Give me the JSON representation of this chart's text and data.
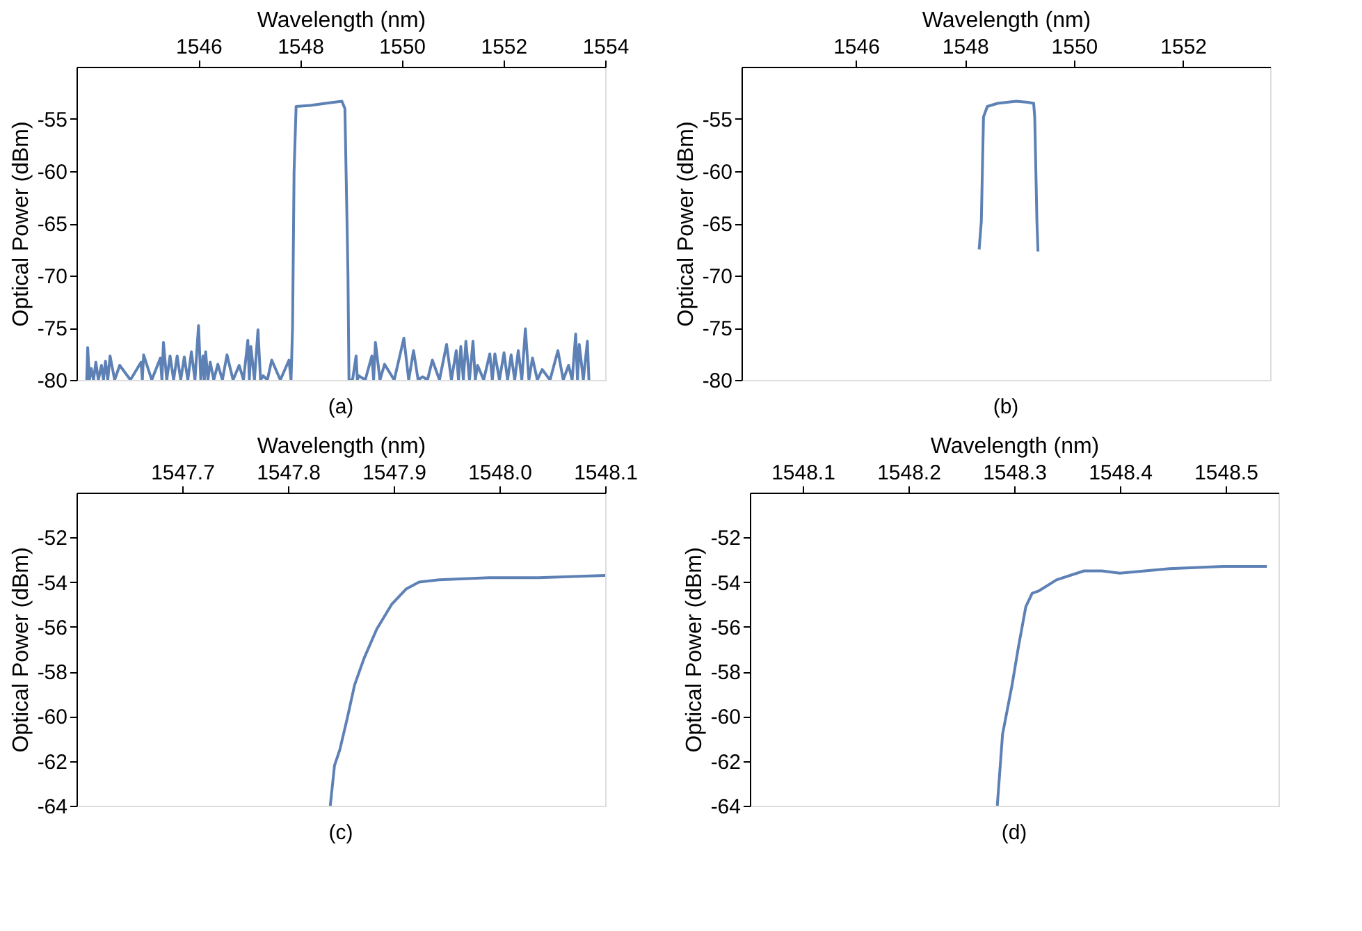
{
  "chart_data": [
    {
      "type": "line",
      "xlabel": "Wavelength (nm)",
      "ylabel": "Optical Power (dBm)",
      "annotations": [
        "(a)"
      ],
      "xlim": [
        1543.6,
        1554
      ],
      "ylim": [
        -80,
        -50
      ],
      "xticks": [
        1546,
        1548,
        1550,
        1552,
        1554
      ],
      "yticks": [
        -55,
        -60,
        -65,
        -70,
        -75,
        -80
      ],
      "grid": false,
      "series": [
        {
          "color": "#5e81b5",
          "x": [
            1543.8,
            1543.82,
            1543.855,
            1543.89,
            1543.935,
            1543.98,
            1544.03,
            1544.09,
            1544.13,
            1544.17,
            1544.215,
            1544.26,
            1544.35,
            1544.45,
            1544.66,
            1544.87,
            1544.895,
            1544.92,
            1545.08,
            1545.25,
            1545.28,
            1545.31,
            1545.375,
            1545.44,
            1545.51,
            1545.58,
            1545.65,
            1545.72,
            1545.79,
            1545.86,
            1545.93,
            1546.0,
            1546.045,
            1546.09,
            1546.115,
            1546.14,
            1546.185,
            1546.23,
            1546.3,
            1546.38,
            1546.47,
            1546.56,
            1546.68,
            1546.8,
            1546.885,
            1546.97,
            1547.0,
            1547.03,
            1547.1,
            1547.17,
            1547.22,
            1547.27,
            1547.355,
            1547.44,
            1547.61,
            1547.78,
            1547.82,
            1547.85,
            1547.88,
            1547.92,
            1548.2,
            1548.5,
            1548.82,
            1548.88,
            1548.92,
            1548.94,
            1548.96,
            1549.03,
            1549.1,
            1549.125,
            1549.15,
            1549.28,
            1549.41,
            1549.445,
            1549.48,
            1549.57,
            1549.66,
            1549.85,
            1550.04,
            1550.135,
            1550.23,
            1550.32,
            1550.41,
            1550.505,
            1550.6,
            1550.74,
            1550.88,
            1550.975,
            1551.07,
            1551.115,
            1551.16,
            1551.21,
            1551.26,
            1551.33,
            1551.4,
            1551.445,
            1551.49,
            1551.61,
            1551.73,
            1551.78,
            1551.83,
            1551.92,
            1552.01,
            1552.08,
            1552.15,
            1552.22,
            1552.29,
            1552.36,
            1552.43,
            1552.5,
            1552.57,
            1552.665,
            1552.76,
            1552.915,
            1553.07,
            1553.175,
            1553.28,
            1553.35,
            1553.42,
            1553.455,
            1553.49,
            1553.57,
            1553.65,
            1553.68
          ],
          "values": [
            -80,
            -76.9,
            -80,
            -78.9,
            -80,
            -78.3,
            -80,
            -78.6,
            -80,
            -78.2,
            -80,
            -77.7,
            -80,
            -78.6,
            -80,
            -78.3,
            -80,
            -77.6,
            -80,
            -77.9,
            -80,
            -76.4,
            -80,
            -77.7,
            -80,
            -77.7,
            -80,
            -77.8,
            -80,
            -77.3,
            -80,
            -74.8,
            -80,
            -77.7,
            -80,
            -77.3,
            -80,
            -78.3,
            -80,
            -78.5,
            -80,
            -77.6,
            -80,
            -78.6,
            -80,
            -76.2,
            -80,
            -76.8,
            -80,
            -75.2,
            -80,
            -79.6,
            -80,
            -78.1,
            -80,
            -78.1,
            -80,
            -75,
            -60,
            -53.8,
            -53.7,
            -53.5,
            -53.3,
            -54,
            -64.5,
            -70,
            -80,
            -80,
            -77.7,
            -80,
            -79.6,
            -80,
            -77.7,
            -80,
            -76.4,
            -80,
            -78.5,
            -80,
            -76.0,
            -80,
            -77.2,
            -80,
            -79.7,
            -80,
            -78.1,
            -80,
            -76.6,
            -80,
            -77.2,
            -80,
            -76.8,
            -80,
            -76.3,
            -80,
            -76.3,
            -80,
            -78.6,
            -80,
            -77.5,
            -80,
            -77.5,
            -80,
            -77.4,
            -80,
            -77.6,
            -80,
            -77.2,
            -80,
            -75.1,
            -80,
            -77.9,
            -80,
            -79.0,
            -80,
            -77.2,
            -80,
            -78.6,
            -80,
            -75.6,
            -80,
            -76.6,
            -80,
            -76.3,
            -80
          ]
        }
      ]
    },
    {
      "type": "line",
      "xlabel": "Wavelength (nm)",
      "ylabel": "Optical Power (dBm)",
      "annotations": [
        "(b)"
      ],
      "xlim": [
        1543.9,
        1553.6
      ],
      "ylim": [
        -80,
        -50
      ],
      "xticks": [
        1546,
        1548,
        1550,
        1552
      ],
      "yticks": [
        -55,
        -60,
        -65,
        -70,
        -75,
        -80
      ],
      "grid": false,
      "series": [
        {
          "color": "#5e81b5",
          "x": [
            1548.26,
            1548.3,
            1548.34,
            1548.41,
            1548.6,
            1548.94,
            1549.15,
            1549.26,
            1549.28,
            1549.32,
            1549.34
          ],
          "values": [
            -67.5,
            -64.8,
            -54.8,
            -53.8,
            -53.5,
            -53.3,
            -53.4,
            -53.5,
            -54.8,
            -64.8,
            -67.7
          ]
        }
      ]
    },
    {
      "type": "line",
      "xlabel": "Wavelength (nm)",
      "ylabel": "Optical Power (dBm)",
      "annotations": [
        "(c)"
      ],
      "xlim": [
        1547.6,
        1548.1
      ],
      "ylim": [
        -64,
        -50
      ],
      "xticks": [
        {
          "value": 1547.7,
          "label": "1547.7"
        },
        {
          "value": 1547.8,
          "label": "1547.8"
        },
        {
          "value": 1547.9,
          "label": "1547.9"
        },
        {
          "value": 1548.0,
          "label": "1548.0"
        },
        {
          "value": 1548.1,
          "label": "1548.1"
        }
      ],
      "yticks": [
        -52,
        -54,
        -56,
        -58,
        -60,
        -62,
        -64
      ],
      "grid": false,
      "series": [
        {
          "color": "#5e81b5",
          "x": [
            1547.84,
            1547.844,
            1547.849,
            1547.856,
            1547.863,
            1547.872,
            1547.884,
            1547.898,
            1547.912,
            1547.924,
            1547.943,
            1547.99,
            1548.037,
            1548.1
          ],
          "values": [
            -64,
            -62.2,
            -61.5,
            -60.1,
            -58.6,
            -57.4,
            -56.1,
            -55.0,
            -54.3,
            -54.0,
            -53.9,
            -53.8,
            -53.8,
            -53.7
          ]
        }
      ]
    },
    {
      "type": "line",
      "xlabel": "Wavelength (nm)",
      "ylabel": "Optical Power (dBm)",
      "annotations": [
        "(d)"
      ],
      "xlim": [
        1548.05,
        1548.55
      ],
      "ylim": [
        -64,
        -50
      ],
      "xticks": [
        {
          "value": 1548.1,
          "label": "1548.1"
        },
        {
          "value": 1548.2,
          "label": "1548.2"
        },
        {
          "value": 1548.3,
          "label": "1548.3"
        },
        {
          "value": 1548.4,
          "label": "1548.4"
        },
        {
          "value": 1548.5,
          "label": "1548.5"
        }
      ],
      "yticks": [
        -52,
        -54,
        -56,
        -58,
        -60,
        -62,
        -64
      ],
      "grid": false,
      "series": [
        {
          "color": "#5e81b5",
          "x": [
            1548.284,
            1548.289,
            1548.298,
            1548.304,
            1548.311,
            1548.317,
            1548.323,
            1548.34,
            1548.366,
            1548.383,
            1548.4,
            1548.447,
            1548.498,
            1548.539
          ],
          "values": [
            -64,
            -60.8,
            -58.6,
            -56.9,
            -55.1,
            -54.5,
            -54.4,
            -53.9,
            -53.5,
            -53.5,
            -53.6,
            -53.4,
            -53.3,
            -53.3
          ]
        }
      ]
    }
  ]
}
